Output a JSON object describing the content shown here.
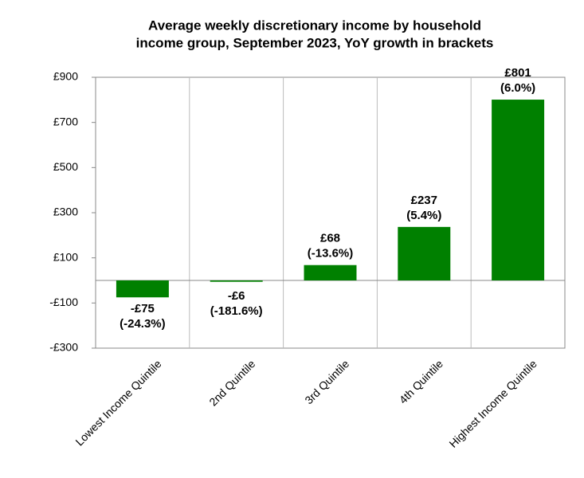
{
  "chart_data": {
    "type": "bar",
    "title": [
      "Average weekly discretionary income by household",
      "income group, September 2023, YoY growth in brackets"
    ],
    "categories": [
      "Lowest Income Quintile",
      "2nd Quintile",
      "3rd Quintile",
      "4th Quintile",
      "Highest Income Quintile"
    ],
    "values": [
      -75,
      -6,
      68,
      237,
      801
    ],
    "value_labels": [
      "-£75",
      "-£6",
      "£68",
      "£237",
      "£801"
    ],
    "growth_labels": [
      "(-24.3%)",
      "(-181.6%)",
      "(-13.6%)",
      "(5.4%)",
      "(6.0%)"
    ],
    "color": "#008000",
    "ylim": [
      -300,
      900
    ],
    "yticks": [
      {
        "value": -300,
        "label": "-£300"
      },
      {
        "value": -100,
        "label": "-£100"
      },
      {
        "value": 100,
        "label": "£100"
      },
      {
        "value": 300,
        "label": "£300"
      },
      {
        "value": 500,
        "label": "£500"
      },
      {
        "value": 700,
        "label": "£700"
      },
      {
        "value": 900,
        "label": "£900"
      }
    ],
    "grid": true
  }
}
